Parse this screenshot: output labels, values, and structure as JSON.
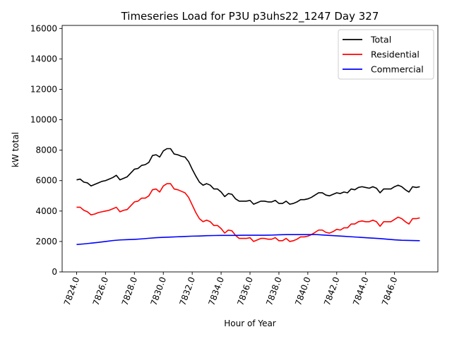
{
  "chart_data": {
    "type": "line",
    "title": "Timeseries Load for P3U p3uhs22_1247  Day 327",
    "xlabel": "Hour of Year",
    "ylabel": "kW total",
    "xlim": [
      7823.0,
      7849.0
    ],
    "ylim": [
      0,
      16200
    ],
    "x_ticks": [
      7824.0,
      7826.0,
      7828.0,
      7830.0,
      7832.0,
      7834.0,
      7836.0,
      7838.0,
      7840.0,
      7842.0,
      7844.0,
      7846.0
    ],
    "x_tick_labels": [
      "7824.0",
      "7826.0",
      "7828.0",
      "7830.0",
      "7832.0",
      "7834.0",
      "7836.0",
      "7838.0",
      "7840.0",
      "7842.0",
      "7844.0",
      "7846.0"
    ],
    "y_ticks": [
      0,
      2000,
      4000,
      6000,
      8000,
      10000,
      12000,
      14000,
      16000
    ],
    "y_tick_labels": [
      "0",
      "2000",
      "4000",
      "6000",
      "8000",
      "10000",
      "12000",
      "14000",
      "16000"
    ],
    "legend_position": "top-right",
    "grid": false,
    "series": [
      {
        "name": "Total",
        "color": "#000000",
        "points": [
          [
            7824.0,
            6050
          ],
          [
            7824.25,
            6100
          ],
          [
            7824.5,
            5900
          ],
          [
            7824.75,
            5850
          ],
          [
            7825.0,
            5650
          ],
          [
            7825.25,
            5750
          ],
          [
            7825.5,
            5850
          ],
          [
            7825.75,
            5950
          ],
          [
            7826.0,
            6000
          ],
          [
            7826.25,
            6100
          ],
          [
            7826.5,
            6200
          ],
          [
            7826.75,
            6350
          ],
          [
            7827.0,
            6050
          ],
          [
            7827.25,
            6150
          ],
          [
            7827.5,
            6250
          ],
          [
            7827.75,
            6500
          ],
          [
            7828.0,
            6750
          ],
          [
            7828.25,
            6800
          ],
          [
            7828.5,
            7000
          ],
          [
            7828.75,
            7050
          ],
          [
            7829.0,
            7200
          ],
          [
            7829.25,
            7650
          ],
          [
            7829.5,
            7700
          ],
          [
            7829.75,
            7550
          ],
          [
            7830.0,
            7950
          ],
          [
            7830.25,
            8100
          ],
          [
            7830.5,
            8100
          ],
          [
            7830.75,
            7750
          ],
          [
            7831.0,
            7700
          ],
          [
            7831.25,
            7600
          ],
          [
            7831.5,
            7550
          ],
          [
            7831.75,
            7250
          ],
          [
            7832.0,
            6750
          ],
          [
            7832.25,
            6300
          ],
          [
            7832.5,
            5900
          ],
          [
            7832.75,
            5700
          ],
          [
            7833.0,
            5800
          ],
          [
            7833.25,
            5700
          ],
          [
            7833.5,
            5450
          ],
          [
            7833.75,
            5450
          ],
          [
            7834.0,
            5250
          ],
          [
            7834.25,
            4950
          ],
          [
            7834.5,
            5150
          ],
          [
            7834.75,
            5100
          ],
          [
            7835.0,
            4800
          ],
          [
            7835.25,
            4650
          ],
          [
            7835.5,
            4650
          ],
          [
            7835.75,
            4650
          ],
          [
            7836.0,
            4700
          ],
          [
            7836.25,
            4450
          ],
          [
            7836.5,
            4550
          ],
          [
            7836.75,
            4650
          ],
          [
            7837.0,
            4650
          ],
          [
            7837.25,
            4600
          ],
          [
            7837.5,
            4600
          ],
          [
            7837.75,
            4700
          ],
          [
            7838.0,
            4500
          ],
          [
            7838.25,
            4500
          ],
          [
            7838.5,
            4650
          ],
          [
            7838.75,
            4450
          ],
          [
            7839.0,
            4500
          ],
          [
            7839.25,
            4600
          ],
          [
            7839.5,
            4750
          ],
          [
            7839.75,
            4750
          ],
          [
            7840.0,
            4800
          ],
          [
            7840.25,
            4900
          ],
          [
            7840.5,
            5050
          ],
          [
            7840.75,
            5200
          ],
          [
            7841.0,
            5200
          ],
          [
            7841.25,
            5050
          ],
          [
            7841.5,
            5000
          ],
          [
            7841.75,
            5100
          ],
          [
            7842.0,
            5200
          ],
          [
            7842.25,
            5150
          ],
          [
            7842.5,
            5250
          ],
          [
            7842.75,
            5200
          ],
          [
            7843.0,
            5450
          ],
          [
            7843.25,
            5400
          ],
          [
            7843.5,
            5550
          ],
          [
            7843.75,
            5600
          ],
          [
            7844.0,
            5550
          ],
          [
            7844.25,
            5500
          ],
          [
            7844.5,
            5600
          ],
          [
            7844.75,
            5500
          ],
          [
            7845.0,
            5200
          ],
          [
            7845.25,
            5450
          ],
          [
            7845.5,
            5450
          ],
          [
            7845.75,
            5450
          ],
          [
            7846.0,
            5600
          ],
          [
            7846.25,
            5700
          ],
          [
            7846.5,
            5600
          ],
          [
            7846.75,
            5400
          ],
          [
            7847.0,
            5250
          ],
          [
            7847.25,
            5600
          ],
          [
            7847.5,
            5550
          ],
          [
            7847.75,
            5600
          ]
        ]
      },
      {
        "name": "Residential",
        "color": "#ff0000",
        "points": [
          [
            7824.0,
            4250
          ],
          [
            7824.25,
            4250
          ],
          [
            7824.5,
            4050
          ],
          [
            7824.75,
            3950
          ],
          [
            7825.0,
            3750
          ],
          [
            7825.25,
            3800
          ],
          [
            7825.5,
            3900
          ],
          [
            7825.75,
            3950
          ],
          [
            7826.0,
            4000
          ],
          [
            7826.25,
            4050
          ],
          [
            7826.5,
            4150
          ],
          [
            7826.75,
            4250
          ],
          [
            7827.0,
            3950
          ],
          [
            7827.25,
            4050
          ],
          [
            7827.5,
            4100
          ],
          [
            7827.75,
            4350
          ],
          [
            7828.0,
            4600
          ],
          [
            7828.25,
            4650
          ],
          [
            7828.5,
            4850
          ],
          [
            7828.75,
            4850
          ],
          [
            7829.0,
            5000
          ],
          [
            7829.25,
            5400
          ],
          [
            7829.5,
            5450
          ],
          [
            7829.75,
            5250
          ],
          [
            7830.0,
            5650
          ],
          [
            7830.25,
            5800
          ],
          [
            7830.5,
            5800
          ],
          [
            7830.75,
            5450
          ],
          [
            7831.0,
            5400
          ],
          [
            7831.25,
            5300
          ],
          [
            7831.5,
            5200
          ],
          [
            7831.75,
            4900
          ],
          [
            7832.0,
            4400
          ],
          [
            7832.25,
            3900
          ],
          [
            7832.5,
            3500
          ],
          [
            7832.75,
            3300
          ],
          [
            7833.0,
            3400
          ],
          [
            7833.25,
            3300
          ],
          [
            7833.5,
            3050
          ],
          [
            7833.75,
            3050
          ],
          [
            7834.0,
            2850
          ],
          [
            7834.25,
            2550
          ],
          [
            7834.5,
            2750
          ],
          [
            7834.75,
            2700
          ],
          [
            7835.0,
            2400
          ],
          [
            7835.25,
            2200
          ],
          [
            7835.5,
            2200
          ],
          [
            7835.75,
            2200
          ],
          [
            7836.0,
            2250
          ],
          [
            7836.25,
            2000
          ],
          [
            7836.5,
            2100
          ],
          [
            7836.75,
            2200
          ],
          [
            7837.0,
            2200
          ],
          [
            7837.25,
            2150
          ],
          [
            7837.5,
            2150
          ],
          [
            7837.75,
            2250
          ],
          [
            7838.0,
            2050
          ],
          [
            7838.25,
            2050
          ],
          [
            7838.5,
            2200
          ],
          [
            7838.75,
            2000
          ],
          [
            7839.0,
            2050
          ],
          [
            7839.25,
            2150
          ],
          [
            7839.5,
            2300
          ],
          [
            7839.75,
            2300
          ],
          [
            7840.0,
            2350
          ],
          [
            7840.25,
            2450
          ],
          [
            7840.5,
            2600
          ],
          [
            7840.75,
            2750
          ],
          [
            7841.0,
            2750
          ],
          [
            7841.25,
            2600
          ],
          [
            7841.5,
            2550
          ],
          [
            7841.75,
            2650
          ],
          [
            7842.0,
            2800
          ],
          [
            7842.25,
            2750
          ],
          [
            7842.5,
            2900
          ],
          [
            7842.75,
            2900
          ],
          [
            7843.0,
            3150
          ],
          [
            7843.25,
            3150
          ],
          [
            7843.5,
            3300
          ],
          [
            7843.75,
            3350
          ],
          [
            7844.0,
            3300
          ],
          [
            7844.25,
            3300
          ],
          [
            7844.5,
            3400
          ],
          [
            7844.75,
            3300
          ],
          [
            7845.0,
            3000
          ],
          [
            7845.25,
            3300
          ],
          [
            7845.5,
            3300
          ],
          [
            7845.75,
            3300
          ],
          [
            7846.0,
            3450
          ],
          [
            7846.25,
            3600
          ],
          [
            7846.5,
            3500
          ],
          [
            7846.75,
            3300
          ],
          [
            7847.0,
            3150
          ],
          [
            7847.25,
            3500
          ],
          [
            7847.5,
            3500
          ],
          [
            7847.75,
            3550
          ]
        ]
      },
      {
        "name": "Commercial",
        "color": "#0000ff",
        "points": [
          [
            7824.0,
            1800
          ],
          [
            7824.5,
            1840
          ],
          [
            7825.0,
            1890
          ],
          [
            7825.5,
            1940
          ],
          [
            7826.0,
            2000
          ],
          [
            7826.5,
            2060
          ],
          [
            7827.0,
            2100
          ],
          [
            7827.5,
            2120
          ],
          [
            7828.0,
            2140
          ],
          [
            7828.5,
            2170
          ],
          [
            7829.0,
            2210
          ],
          [
            7829.5,
            2250
          ],
          [
            7830.0,
            2270
          ],
          [
            7830.5,
            2290
          ],
          [
            7831.0,
            2310
          ],
          [
            7831.5,
            2330
          ],
          [
            7832.0,
            2350
          ],
          [
            7832.5,
            2360
          ],
          [
            7833.0,
            2380
          ],
          [
            7833.5,
            2390
          ],
          [
            7834.0,
            2400
          ],
          [
            7834.5,
            2400
          ],
          [
            7835.0,
            2400
          ],
          [
            7835.5,
            2410
          ],
          [
            7836.0,
            2410
          ],
          [
            7836.5,
            2410
          ],
          [
            7837.0,
            2410
          ],
          [
            7837.5,
            2420
          ],
          [
            7838.0,
            2440
          ],
          [
            7838.5,
            2450
          ],
          [
            7839.0,
            2450
          ],
          [
            7839.5,
            2450
          ],
          [
            7840.0,
            2450
          ],
          [
            7840.5,
            2460
          ],
          [
            7841.0,
            2430
          ],
          [
            7841.5,
            2400
          ],
          [
            7842.0,
            2370
          ],
          [
            7842.5,
            2340
          ],
          [
            7843.0,
            2310
          ],
          [
            7843.5,
            2280
          ],
          [
            7844.0,
            2250
          ],
          [
            7844.5,
            2220
          ],
          [
            7845.0,
            2190
          ],
          [
            7845.5,
            2150
          ],
          [
            7846.0,
            2110
          ],
          [
            7846.5,
            2080
          ],
          [
            7847.0,
            2070
          ],
          [
            7847.75,
            2050
          ]
        ]
      }
    ]
  }
}
